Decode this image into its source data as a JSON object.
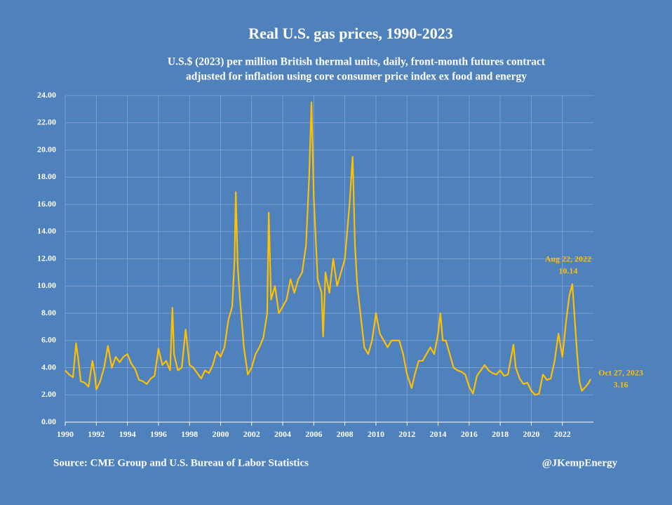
{
  "chart_data": {
    "type": "line",
    "title": "Real U.S. gas prices, 1990-2023",
    "subtitle": [
      "U.S.$ (2023) per million British thermal units, daily, front-month futures contract",
      "adjusted for inflation using core consumer price index ex food and energy"
    ],
    "source": "Source: CME Group and U.S. Bureau of Labor Statistics",
    "credit": "@JKempEnergy",
    "color": "#ffc000",
    "grid": true,
    "xlim": [
      1990,
      2024
    ],
    "xticks": [
      1990,
      1992,
      1994,
      1996,
      1998,
      2000,
      2002,
      2004,
      2006,
      2008,
      2010,
      2012,
      2014,
      2016,
      2018,
      2020,
      2022
    ],
    "ylim": [
      0,
      24
    ],
    "yticks": [
      {
        "value": 0,
        "label": "0.00"
      },
      {
        "value": 2,
        "label": "2.00"
      },
      {
        "value": 4,
        "label": "4.00"
      },
      {
        "value": 6,
        "label": "6.00"
      },
      {
        "value": 8,
        "label": "8.00"
      },
      {
        "value": 10,
        "label": "10.00"
      },
      {
        "value": 12,
        "label": "12.00"
      },
      {
        "value": 14,
        "label": "14.00"
      },
      {
        "value": 16,
        "label": "16.00"
      },
      {
        "value": 18,
        "label": "18.00"
      },
      {
        "value": 20,
        "label": "20.00"
      },
      {
        "value": 22,
        "label": "22.00"
      },
      {
        "value": 24,
        "label": "24.00"
      }
    ],
    "x": [
      1990.0,
      1990.25,
      1990.5,
      1990.7,
      1990.85,
      1991.0,
      1991.25,
      1991.5,
      1991.75,
      1991.9,
      1992.0,
      1992.25,
      1992.5,
      1992.75,
      1993.0,
      1993.25,
      1993.5,
      1993.75,
      1994.0,
      1994.25,
      1994.5,
      1994.75,
      1995.0,
      1995.25,
      1995.5,
      1995.75,
      1996.0,
      1996.25,
      1996.5,
      1996.75,
      1996.9,
      1997.0,
      1997.25,
      1997.5,
      1997.75,
      1998.0,
      1998.25,
      1998.5,
      1998.75,
      1999.0,
      1999.25,
      1999.5,
      1999.75,
      2000.0,
      2000.25,
      2000.5,
      2000.75,
      2000.9,
      2000.98,
      2001.1,
      2001.25,
      2001.5,
      2001.75,
      2002.0,
      2002.25,
      2002.5,
      2002.75,
      2003.0,
      2003.1,
      2003.25,
      2003.5,
      2003.75,
      2004.0,
      2004.25,
      2004.5,
      2004.75,
      2005.0,
      2005.25,
      2005.5,
      2005.7,
      2005.85,
      2006.0,
      2006.25,
      2006.5,
      2006.6,
      2006.75,
      2007.0,
      2007.25,
      2007.5,
      2007.75,
      2008.0,
      2008.3,
      2008.5,
      2008.65,
      2008.8,
      2009.0,
      2009.25,
      2009.5,
      2009.75,
      2010.0,
      2010.25,
      2010.5,
      2010.75,
      2011.0,
      2011.25,
      2011.5,
      2011.75,
      2012.0,
      2012.3,
      2012.5,
      2012.75,
      2013.0,
      2013.25,
      2013.5,
      2013.75,
      2014.0,
      2014.15,
      2014.3,
      2014.5,
      2014.75,
      2015.0,
      2015.25,
      2015.5,
      2015.75,
      2016.0,
      2016.25,
      2016.5,
      2016.75,
      2017.0,
      2017.25,
      2017.5,
      2017.75,
      2018.0,
      2018.25,
      2018.5,
      2018.85,
      2019.0,
      2019.25,
      2019.5,
      2019.75,
      2020.0,
      2020.25,
      2020.5,
      2020.75,
      2021.0,
      2021.25,
      2021.5,
      2021.75,
      2022.0,
      2022.25,
      2022.45,
      2022.64,
      2022.8,
      2022.95,
      2023.1,
      2023.25,
      2023.5,
      2023.7,
      2023.82
    ],
    "values": [
      3.8,
      3.5,
      3.3,
      5.8,
      4.5,
      3.0,
      2.9,
      2.6,
      4.5,
      3.5,
      2.4,
      3.0,
      4.0,
      5.6,
      4.0,
      4.8,
      4.4,
      4.8,
      5.0,
      4.3,
      3.9,
      3.1,
      3.0,
      2.8,
      3.2,
      3.4,
      5.4,
      4.2,
      4.5,
      3.8,
      8.4,
      5.0,
      3.8,
      4.0,
      6.8,
      4.2,
      4.0,
      3.6,
      3.2,
      3.8,
      3.6,
      4.2,
      5.2,
      4.8,
      5.5,
      7.5,
      8.5,
      12.0,
      16.9,
      11.5,
      9.0,
      5.5,
      3.5,
      4.0,
      5.0,
      5.5,
      6.2,
      8.0,
      15.4,
      9.0,
      10.0,
      8.0,
      8.5,
      9.0,
      10.5,
      9.5,
      10.5,
      11.0,
      13.0,
      18.0,
      23.5,
      16.5,
      10.5,
      9.5,
      6.3,
      11.0,
      9.5,
      12.0,
      10.0,
      11.0,
      12.0,
      16.0,
      19.5,
      13.0,
      10.0,
      8.0,
      5.5,
      5.0,
      6.0,
      8.0,
      6.5,
      6.0,
      5.5,
      6.0,
      6.0,
      6.0,
      5.0,
      3.5,
      2.5,
      3.5,
      4.5,
      4.5,
      5.0,
      5.5,
      5.0,
      6.5,
      8.0,
      6.0,
      6.0,
      5.0,
      4.0,
      3.8,
      3.7,
      3.5,
      2.6,
      2.1,
      3.4,
      3.8,
      4.2,
      3.8,
      3.6,
      3.5,
      3.8,
      3.4,
      3.5,
      5.7,
      4.0,
      3.2,
      2.8,
      2.9,
      2.3,
      2.0,
      2.1,
      3.5,
      3.1,
      3.2,
      4.5,
      6.5,
      4.8,
      7.5,
      9.3,
      10.14,
      7.5,
      5.0,
      3.0,
      2.3,
      2.6,
      2.9,
      3.16
    ],
    "annotations": [
      {
        "date": "Aug 22, 2022",
        "label": "10.14",
        "x": 2022.64,
        "value": 10.14
      },
      {
        "date": "Oct 27, 2023",
        "label": "3.16",
        "x": 2023.82,
        "value": 3.16
      }
    ]
  }
}
